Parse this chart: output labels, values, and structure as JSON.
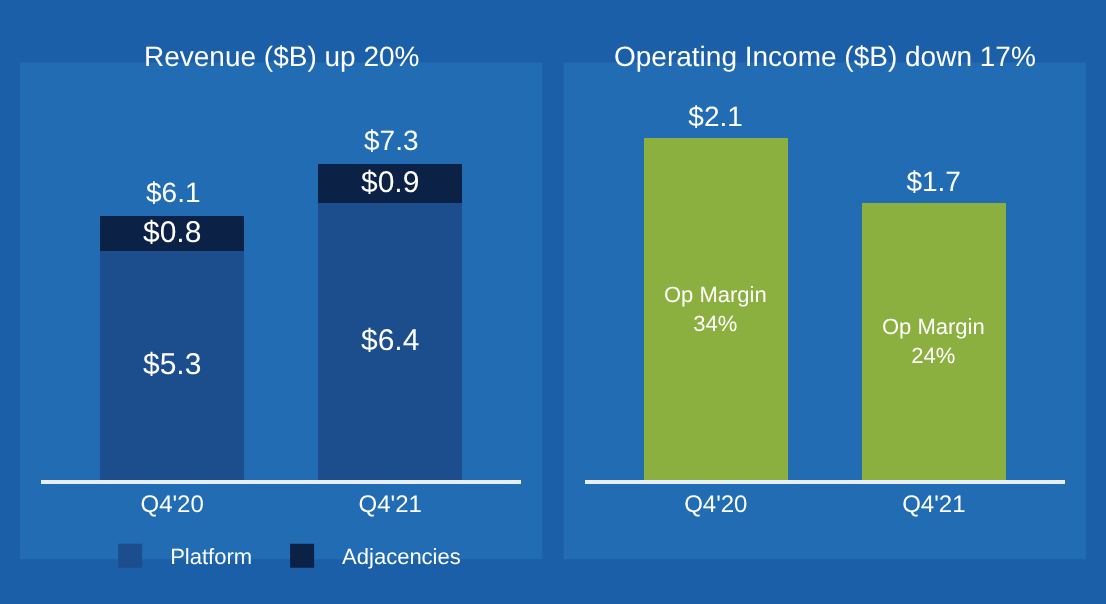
{
  "chart_data": [
    {
      "type": "bar",
      "title": "Revenue ($B) up 20%",
      "categories": [
        "Q4'20",
        "Q4'21"
      ],
      "stacked": true,
      "tick_labels": "x",
      "grid": false,
      "legend": "bottom",
      "series": [
        {
          "name": "Platform",
          "color": "#1c4e8e",
          "values": [
            5.3,
            6.4
          ],
          "value_labels": [
            "$5.3",
            "$6.4"
          ]
        },
        {
          "name": "Adjacencies",
          "color": "#0c2146",
          "values": [
            0.8,
            0.9
          ],
          "value_labels": [
            "$0.8",
            "$0.9"
          ]
        }
      ],
      "totals": [
        "$6.1",
        "$7.3"
      ]
    },
    {
      "type": "bar",
      "title": "Operating Income ($B) down 17%",
      "categories": [
        "Q4'20",
        "Q4'21"
      ],
      "tick_labels": "x",
      "grid": false,
      "legend": false,
      "series": [
        {
          "color": "#8cb03f",
          "values": [
            2.1,
            1.7
          ],
          "value_labels": [
            "$2.1",
            "$1.7"
          ]
        }
      ],
      "annotations": [
        "Op Margin\n34%",
        "Op Margin\n24%"
      ]
    }
  ]
}
